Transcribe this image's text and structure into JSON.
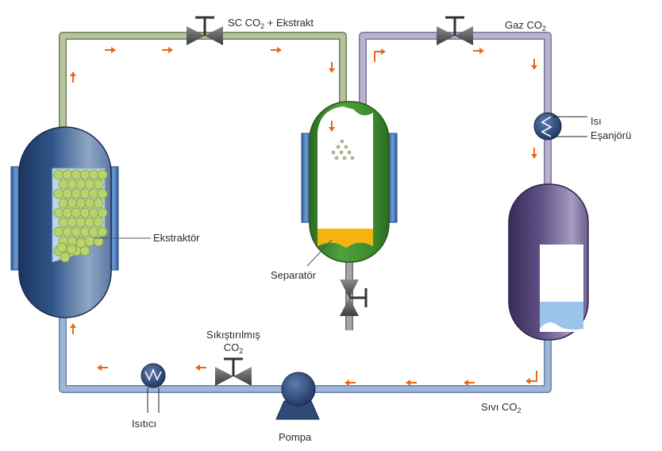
{
  "labels": {
    "sc_co2": "SC CO",
    "sc_co2_sub": "2",
    "sc_co2_rest": " + Ekstrakt",
    "gaz_co2": "Gaz CO",
    "gaz_co2_sub": "2",
    "heat_exchanger_line1": "Isı",
    "heat_exchanger_line2": "Eşanjörü",
    "extractor": "Ekstraktör",
    "separator": "Separatör",
    "compressed_line1": "Sıkıştırılmış",
    "compressed_line2": "CO",
    "compressed_sub": "2",
    "liquid_co2": "Sıvı CO",
    "liquid_co2_sub": "2",
    "heater": "Isıtıcı",
    "pump": "Pompa"
  },
  "colors": {
    "pipe_green": "#b5c49a",
    "pipe_purple": "#b8b1d0",
    "pipe_blue": "#9db6d8",
    "pipe_gray": "#a6a6a6",
    "arrow": "#ee6611",
    "extractor_body": "#23416e",
    "separator_body": "#3f8d2e",
    "tank_body": "#4a3b6b",
    "jacket": "#3a6eb2",
    "beads": "#b9d46a",
    "extract_liquid": "#f5b30f",
    "liquid_co2": "#9cc3ea",
    "valve": "#5a5a5a"
  }
}
